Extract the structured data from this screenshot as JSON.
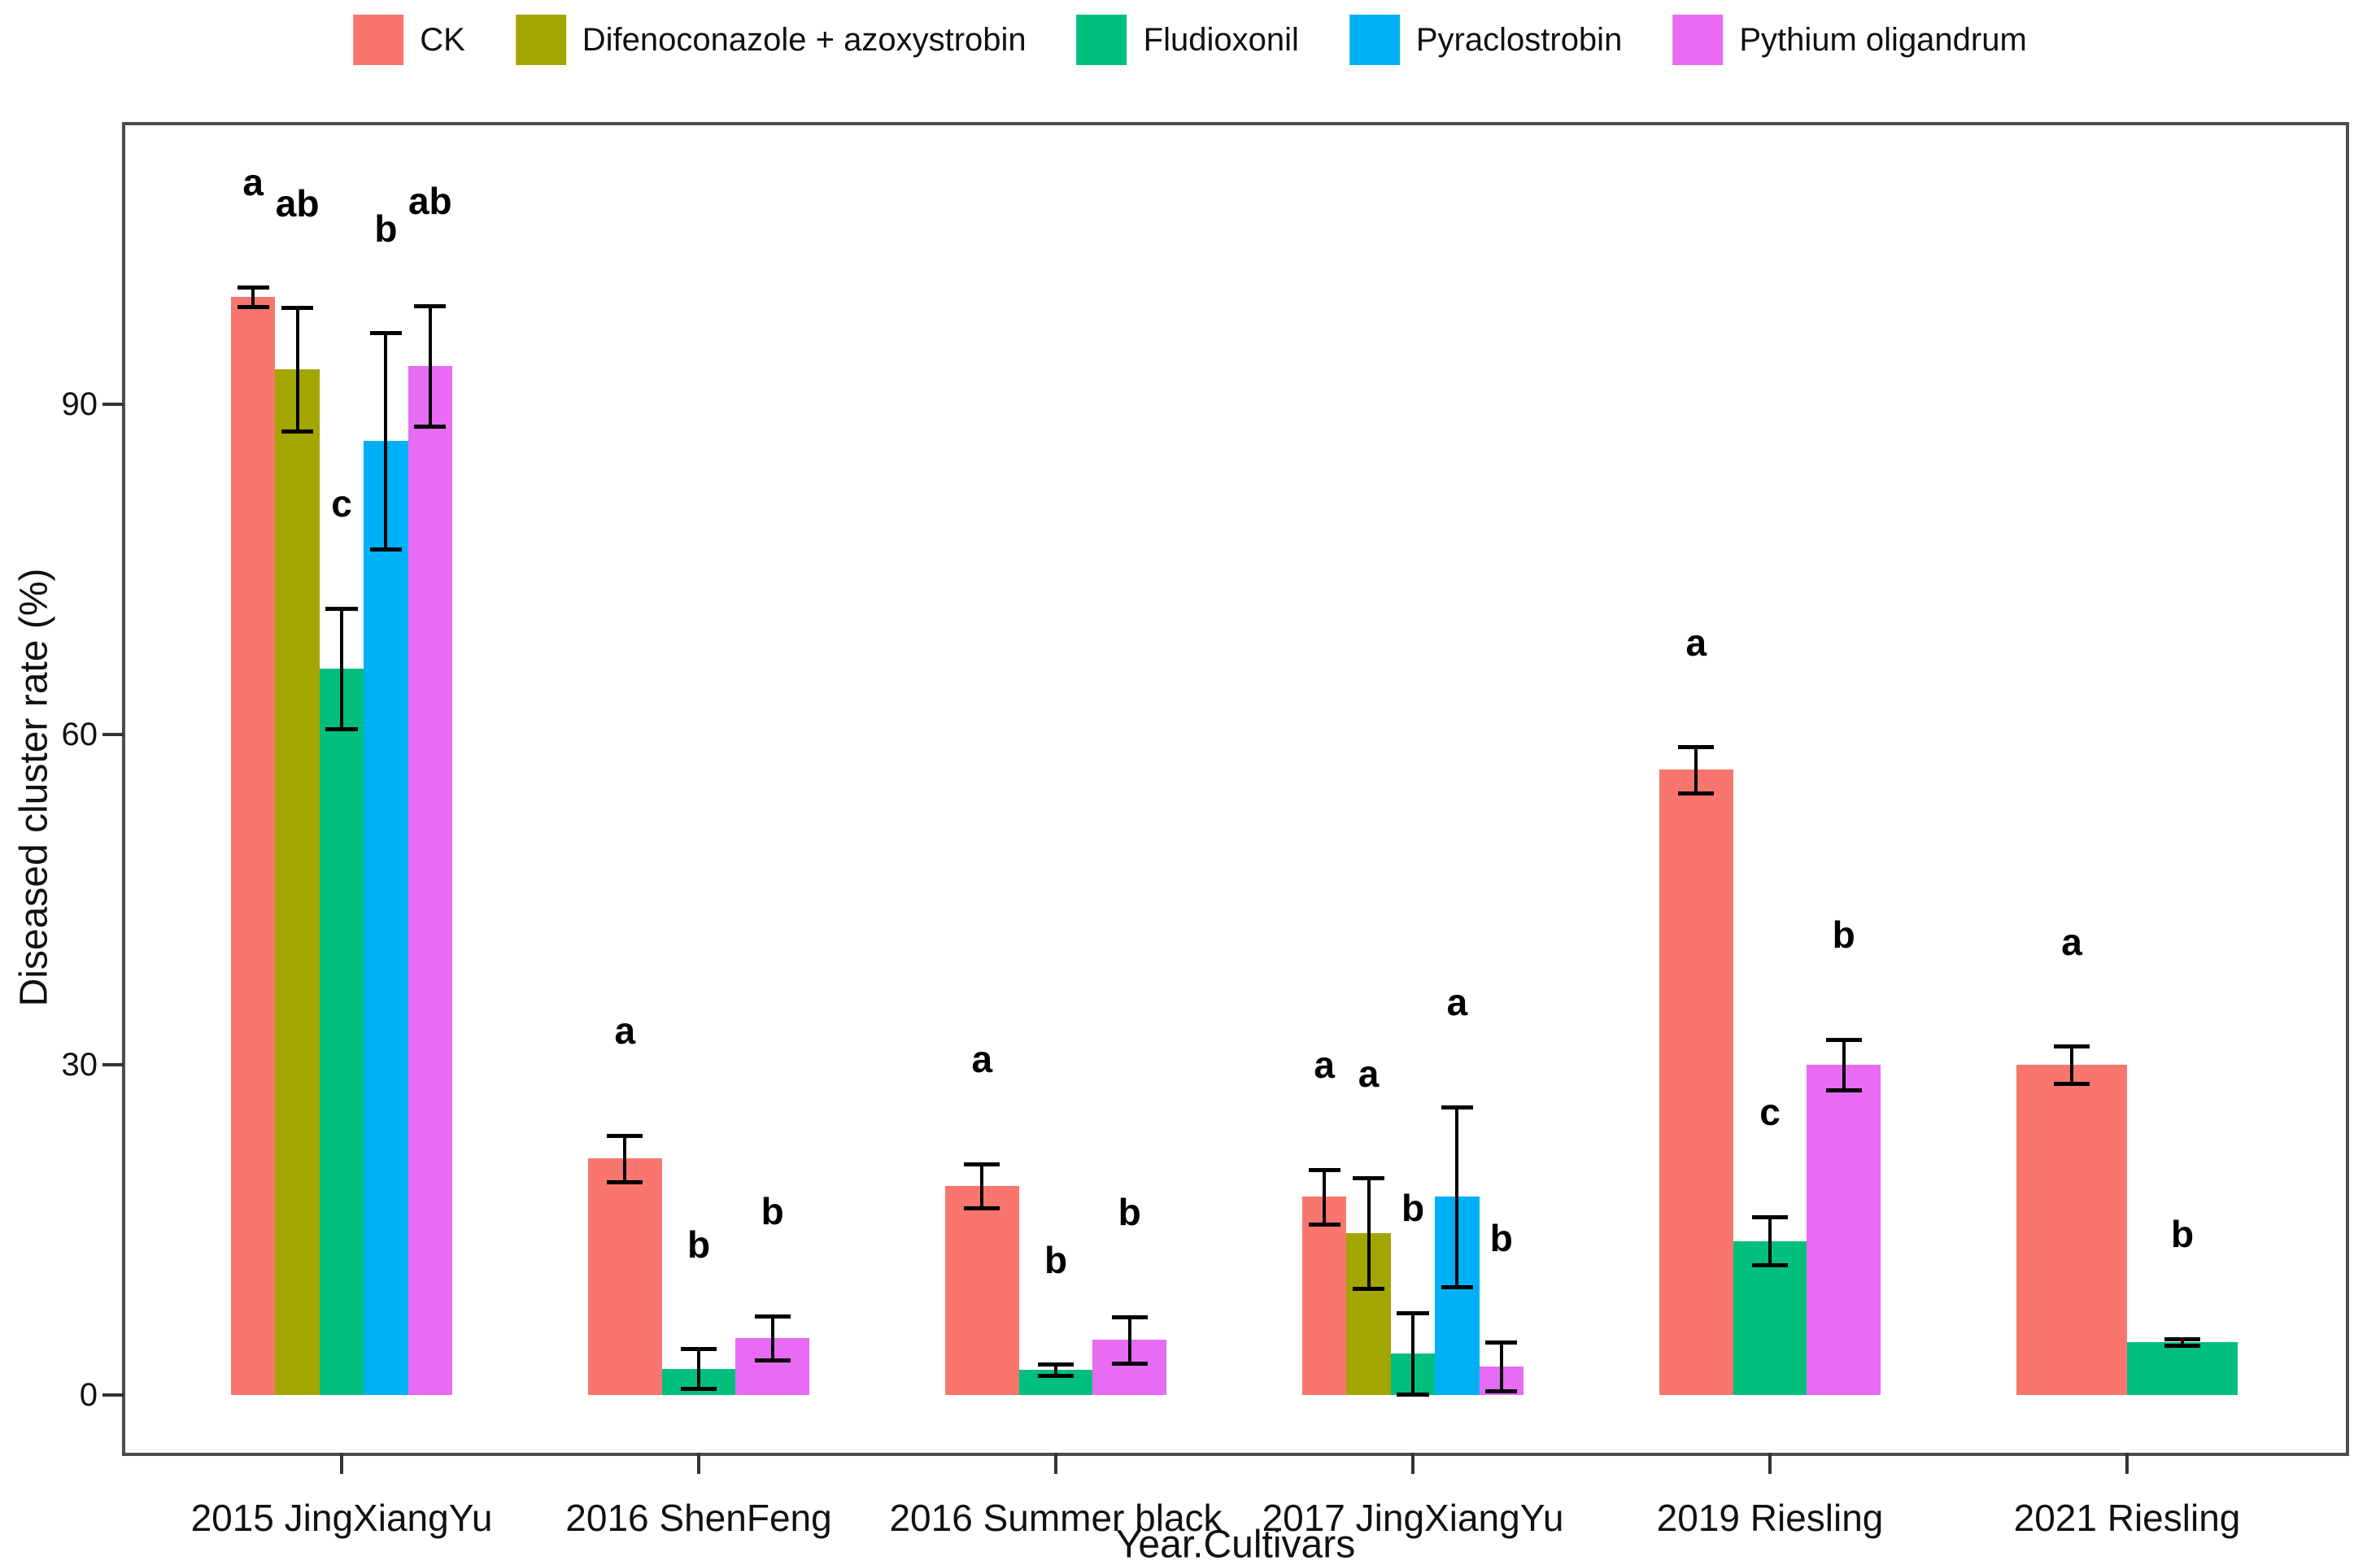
{
  "figure": {
    "background": "#ffffff",
    "border_color": "#4d4d4d",
    "text_color": "#111111",
    "errorbar_color": "#000000"
  },
  "legend": {
    "position": "top",
    "items": [
      {
        "label": "CK",
        "color": "#F8766D",
        "icon": "legend-swatch"
      },
      {
        "label": "Difenoconazole + azoxystrobin",
        "color": "#A3A500",
        "icon": "legend-swatch"
      },
      {
        "label": "Fludioxonil",
        "color": "#00BF7D",
        "icon": "legend-swatch"
      },
      {
        "label": "Pyraclostrobin",
        "color": "#00B0F6",
        "icon": "legend-swatch"
      },
      {
        "label": "Pythium oligandrum",
        "color": "#E76BF3",
        "icon": "legend-swatch"
      }
    ]
  },
  "chart_data": {
    "type": "bar",
    "title": "",
    "xlabel": "Year.Cultivars",
    "ylabel": "Diseased cluster rate (%)",
    "ylim": [
      0,
      115
    ],
    "yticks": [
      0,
      30,
      60,
      90
    ],
    "grid": false,
    "legend_position": "top",
    "error_bars": true,
    "significance_letters": true,
    "categories": [
      "2015 JingXiangYu",
      "2016 ShenFeng",
      "2016 Summer black",
      "2017 JingXiangYu",
      "2019 Riesling",
      "2021 Riesling"
    ],
    "series": [
      {
        "name": "CK",
        "color": "#F8766D",
        "values": [
          99.8,
          21.5,
          19.0,
          18.0,
          56.8,
          30.0
        ],
        "errors": [
          0.9,
          2.1,
          2.0,
          2.5,
          2.1,
          1.7
        ],
        "letters": [
          "a",
          "a",
          "a",
          "a",
          "a",
          "a"
        ]
      },
      {
        "name": "Difenoconazole + azoxystrobin",
        "color": "#A3A500",
        "values": [
          93.2,
          null,
          null,
          14.7,
          null,
          null
        ],
        "errors": [
          5.6,
          null,
          null,
          5.0,
          null,
          null
        ],
        "letters": [
          "ab",
          null,
          null,
          "a",
          null,
          null
        ]
      },
      {
        "name": "Fludioxonil",
        "color": "#00BF7D",
        "values": [
          66.0,
          2.4,
          2.3,
          3.8,
          14.0,
          4.8
        ],
        "errors": [
          5.5,
          1.8,
          0.5,
          3.7,
          2.2,
          0.3
        ],
        "letters": [
          "c",
          "b",
          "b",
          "b",
          "c",
          "b"
        ]
      },
      {
        "name": "Pyraclostrobin",
        "color": "#00B0F6",
        "values": [
          86.7,
          null,
          null,
          18.0,
          null,
          null
        ],
        "errors": [
          9.8,
          null,
          null,
          8.2,
          null,
          null
        ],
        "letters": [
          "b",
          null,
          null,
          "a",
          null,
          null
        ]
      },
      {
        "name": "Pythium oligandrum",
        "color": "#E76BF3",
        "values": [
          93.5,
          5.2,
          5.0,
          2.6,
          30.0,
          null
        ],
        "errors": [
          5.5,
          2.0,
          2.1,
          2.2,
          2.3,
          null
        ],
        "letters": [
          "ab",
          "b",
          "b",
          "b",
          "b",
          null
        ]
      }
    ]
  }
}
